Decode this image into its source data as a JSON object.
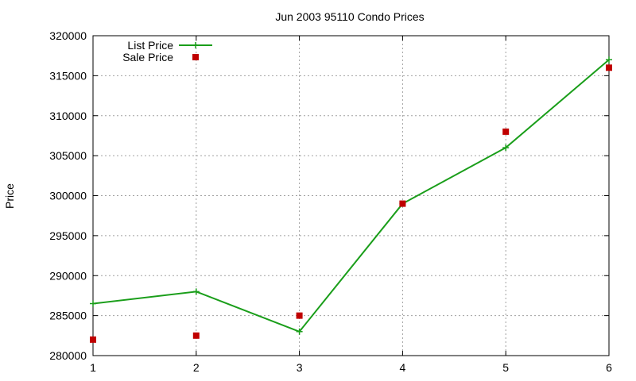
{
  "chart_data": {
    "type": "line",
    "title": "Jun 2003 95110 Condo Prices",
    "xlabel": "",
    "ylabel": "Price",
    "x": [
      1,
      2,
      3,
      4,
      5,
      6
    ],
    "xlim": [
      1,
      6
    ],
    "ylim": [
      280000,
      320000
    ],
    "xticks": [
      "1",
      "2",
      "3",
      "4",
      "5",
      "6"
    ],
    "yticks": [
      "280000",
      "285000",
      "290000",
      "295000",
      "300000",
      "305000",
      "310000",
      "315000",
      "320000"
    ],
    "grid": true,
    "legend_position": "top-left",
    "series": [
      {
        "name": "List Price",
        "style": "line-with-plus-markers",
        "color": "#1a9e1a",
        "values": [
          286500,
          288000,
          283000,
          299000,
          306000,
          317000
        ]
      },
      {
        "name": "Sale Price",
        "style": "square-markers",
        "color": "#c00000",
        "values": [
          282000,
          282500,
          285000,
          299000,
          308000,
          316000
        ]
      }
    ]
  }
}
